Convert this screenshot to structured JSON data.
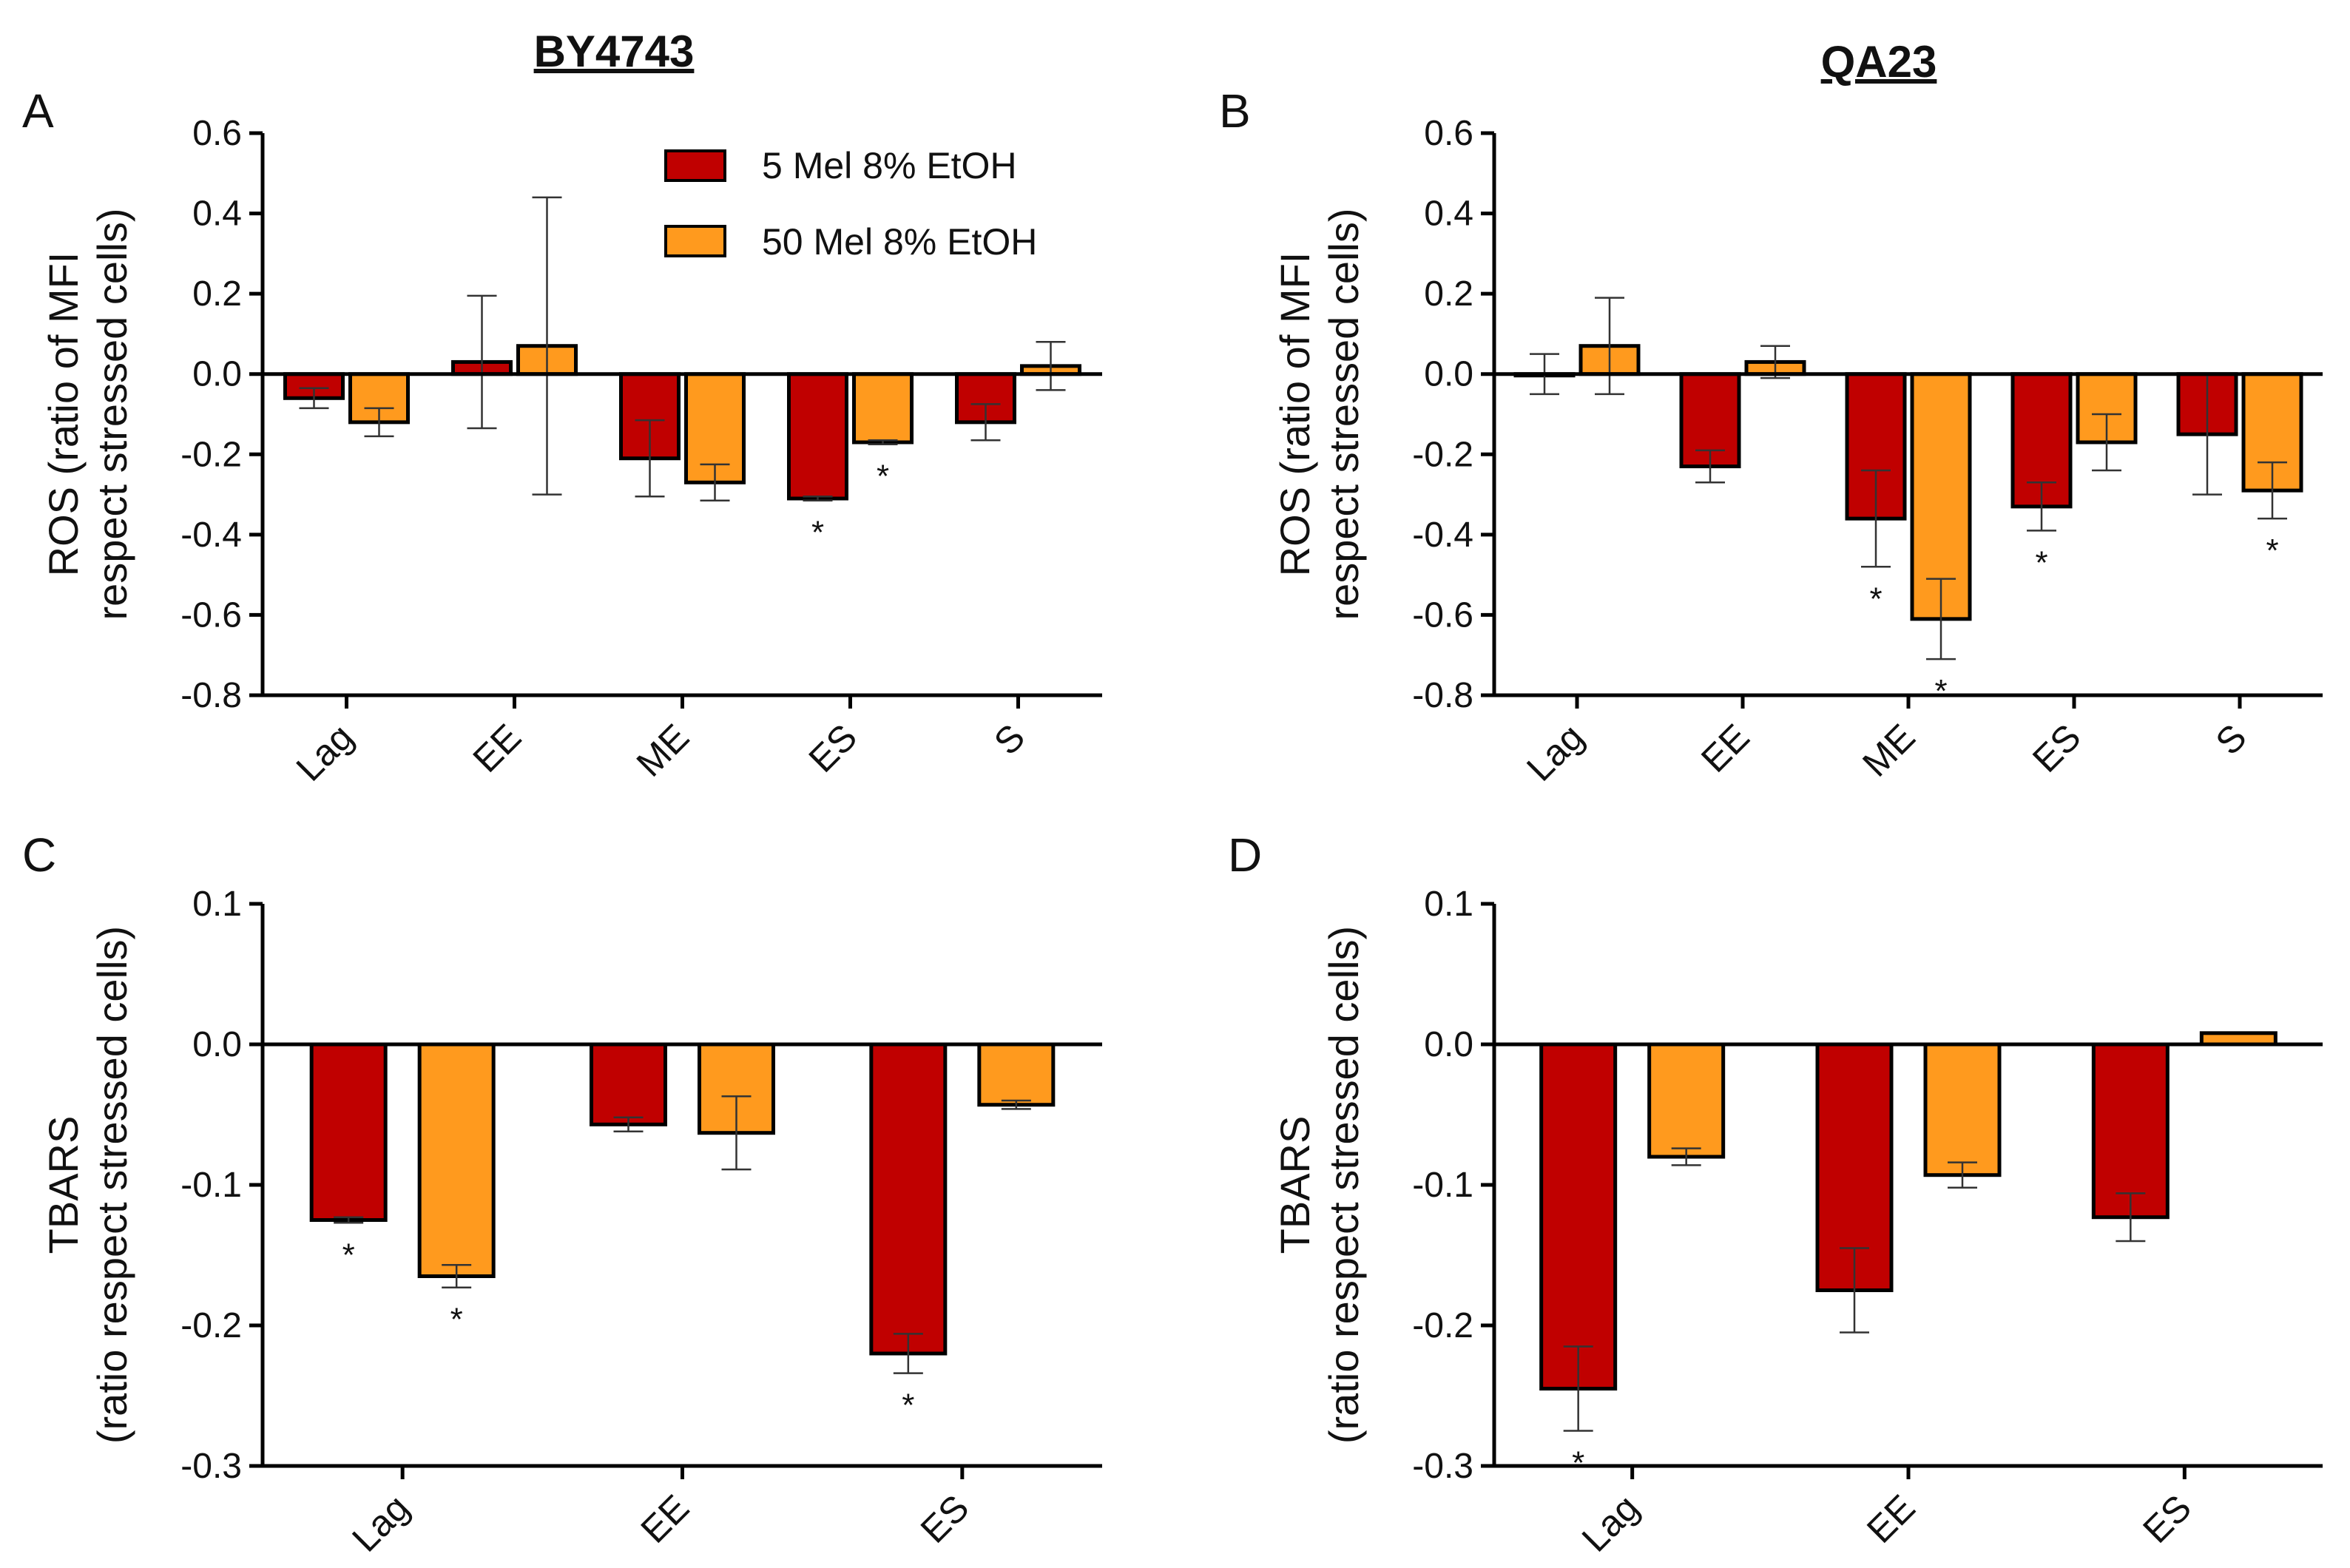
{
  "column_titles": [
    "BY4743",
    "QA23"
  ],
  "legend": [
    {
      "label": "5 Mel 8% EtOH",
      "color": "#C00000"
    },
    {
      "label": "50 Mel 8% EtOH",
      "color": "#FF9A1E"
    }
  ],
  "chart_data": [
    {
      "panel": "A",
      "type": "bar",
      "column_title": "BY4743",
      "ylabel_line1": "ROS (ratio of MFI",
      "ylabel_line2": "respect stressed cells)",
      "ylim": [
        -0.8,
        0.6
      ],
      "yticks": [
        0.6,
        0.4,
        0.2,
        0.0,
        -0.2,
        -0.4,
        -0.6,
        -0.8
      ],
      "ytick_labels": [
        "0.6",
        "0.4",
        "0.2",
        "0.0",
        "-0.2",
        "-0.4",
        "-0.6",
        "-0.8"
      ],
      "categories": [
        "Lag",
        "EE",
        "ME",
        "ES",
        "S"
      ],
      "series": [
        {
          "name": "5 Mel 8% EtOH",
          "values": [
            -0.06,
            0.03,
            -0.21,
            -0.31,
            -0.12
          ],
          "errors": [
            0.025,
            0.165,
            0.095,
            0.005,
            0.045
          ],
          "sig": [
            false,
            false,
            false,
            true,
            false
          ]
        },
        {
          "name": "50 Mel 8% EtOH",
          "values": [
            -0.12,
            0.07,
            -0.27,
            -0.17,
            0.02
          ],
          "errors": [
            0.035,
            0.37,
            0.045,
            0.005,
            0.06
          ],
          "sig": [
            false,
            false,
            false,
            true,
            false
          ]
        }
      ]
    },
    {
      "panel": "B",
      "type": "bar",
      "column_title": "QA23",
      "ylabel_line1": "ROS (ratio of  MFI",
      "ylabel_line2": "respect stressed cells)",
      "ylim": [
        -0.8,
        0.6
      ],
      "yticks": [
        0.6,
        0.4,
        0.2,
        0.0,
        -0.2,
        -0.4,
        -0.6,
        -0.8
      ],
      "ytick_labels": [
        "0.6",
        "0.4",
        "0.2",
        "0.0",
        "-0.2",
        "-0.4",
        "-0.6",
        "-0.8"
      ],
      "categories": [
        "Lag",
        "EE",
        "ME",
        "ES",
        "S"
      ],
      "series": [
        {
          "name": "5 Mel 8% EtOH",
          "values": [
            0.0,
            -0.23,
            -0.36,
            -0.33,
            -0.15
          ],
          "errors": [
            0.05,
            0.04,
            0.12,
            0.06,
            0.15
          ],
          "sig": [
            false,
            false,
            true,
            true,
            false
          ]
        },
        {
          "name": "50 Mel 8% EtOH",
          "values": [
            0.07,
            0.03,
            -0.61,
            -0.17,
            -0.29
          ],
          "errors": [
            0.12,
            0.04,
            0.1,
            0.07,
            0.07
          ],
          "sig": [
            false,
            false,
            true,
            false,
            true
          ]
        }
      ]
    },
    {
      "panel": "C",
      "type": "bar",
      "column_title": "BY4743",
      "ylabel_line1": "TBARS",
      "ylabel_line2": "(ratio respect stressed cells)",
      "ylim": [
        -0.3,
        0.1
      ],
      "yticks": [
        0.1,
        0.0,
        -0.1,
        -0.2,
        -0.3
      ],
      "ytick_labels": [
        "0.1",
        "0.0",
        "-0.1",
        "-0.2",
        "-0.3"
      ],
      "categories": [
        "Lag",
        "EE",
        "ES"
      ],
      "series": [
        {
          "name": "5 Mel 8% EtOH",
          "values": [
            -0.125,
            -0.057,
            -0.22
          ],
          "errors": [
            0.002,
            0.005,
            0.014
          ],
          "sig": [
            true,
            false,
            true
          ]
        },
        {
          "name": "50 Mel 8% EtOH",
          "values": [
            -0.165,
            -0.063,
            -0.043
          ],
          "errors": [
            0.008,
            0.026,
            0.003
          ],
          "sig": [
            true,
            false,
            false
          ]
        }
      ]
    },
    {
      "panel": "D",
      "type": "bar",
      "column_title": "QA23",
      "ylabel_line1": "TBARS",
      "ylabel_line2": "(ratio respect stressed cells)",
      "ylim": [
        -0.3,
        0.1
      ],
      "yticks": [
        0.1,
        0.0,
        -0.1,
        -0.2,
        -0.3
      ],
      "ytick_labels": [
        "0.1",
        "0.0",
        "-0.1",
        "-0.2",
        "-0.3"
      ],
      "categories": [
        "Lag",
        "EE",
        "ES"
      ],
      "series": [
        {
          "name": "5 Mel 8% EtOH",
          "values": [
            -0.245,
            -0.175,
            -0.123
          ],
          "errors": [
            0.03,
            0.03,
            0.017
          ],
          "sig": [
            true,
            false,
            false
          ]
        },
        {
          "name": "50 Mel 8% EtOH",
          "values": [
            -0.08,
            -0.093,
            0.008
          ],
          "errors": [
            0.006,
            0.009,
            0.0
          ],
          "sig": [
            false,
            false,
            false
          ]
        }
      ]
    }
  ]
}
